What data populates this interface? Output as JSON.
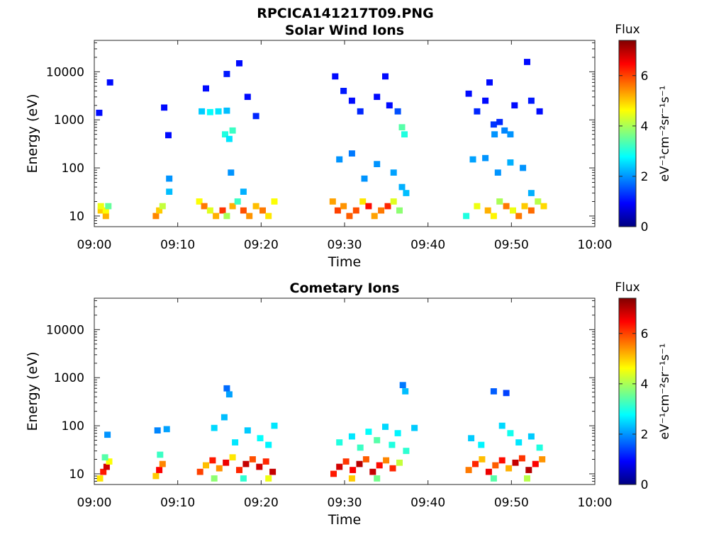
{
  "figure": {
    "title": "RPCICA141217T09.PNG"
  },
  "colormap": "jet",
  "chart_data": [
    {
      "type": "heatmap",
      "title": "Solar Wind Ions",
      "xlabel": "Time",
      "ylabel": "Energy (eV)",
      "x_range": [
        "09:00",
        "10:00"
      ],
      "x_ticks": [
        "09:00",
        "09:10",
        "09:20",
        "09:30",
        "09:40",
        "09:50",
        "10:00"
      ],
      "y_scale": "log",
      "y_range": [
        6,
        45000
      ],
      "y_ticks": [
        "10",
        "100",
        "1000",
        "10000"
      ],
      "colorbar": {
        "title": "Flux",
        "unit": "eV⁻¹cm⁻²sr⁻¹s⁻¹",
        "min": 0,
        "max": 7.4,
        "ticks": [
          "0",
          "2",
          "4",
          "6"
        ]
      },
      "cells": [
        {
          "t": 0.4,
          "e": 13,
          "v": 5.0
        },
        {
          "t": 0.4,
          "e": 16,
          "v": 4.5
        },
        {
          "t": 1.0,
          "e": 10,
          "v": 5.2
        },
        {
          "t": 1.0,
          "e": 13,
          "v": 4.6
        },
        {
          "t": 1.3,
          "e": 16,
          "v": 3.5
        },
        {
          "t": 7.0,
          "e": 10,
          "v": 5.5
        },
        {
          "t": 7.4,
          "e": 13,
          "v": 5.0
        },
        {
          "t": 7.8,
          "e": 16,
          "v": 4.2
        },
        {
          "t": 12.2,
          "e": 20,
          "v": 4.6
        },
        {
          "t": 12.8,
          "e": 16,
          "v": 5.6
        },
        {
          "t": 13.5,
          "e": 13,
          "v": 4.4
        },
        {
          "t": 14.2,
          "e": 10,
          "v": 5.2
        },
        {
          "t": 15.0,
          "e": 13,
          "v": 6.1
        },
        {
          "t": 15.5,
          "e": 10,
          "v": 4.0
        },
        {
          "t": 16.2,
          "e": 16,
          "v": 5.2
        },
        {
          "t": 16.8,
          "e": 20,
          "v": 3.2
        },
        {
          "t": 17.5,
          "e": 13,
          "v": 5.9
        },
        {
          "t": 18.2,
          "e": 10,
          "v": 5.4
        },
        {
          "t": 19.0,
          "e": 16,
          "v": 5.1
        },
        {
          "t": 19.8,
          "e": 13,
          "v": 5.6
        },
        {
          "t": 20.5,
          "e": 10,
          "v": 4.8
        },
        {
          "t": 21.2,
          "e": 20,
          "v": 4.6
        },
        {
          "t": 28.2,
          "e": 20,
          "v": 5.3
        },
        {
          "t": 28.8,
          "e": 13,
          "v": 6.0
        },
        {
          "t": 29.5,
          "e": 16,
          "v": 5.4
        },
        {
          "t": 30.2,
          "e": 10,
          "v": 5.8
        },
        {
          "t": 31.0,
          "e": 13,
          "v": 5.9
        },
        {
          "t": 31.8,
          "e": 20,
          "v": 4.8
        },
        {
          "t": 32.5,
          "e": 16,
          "v": 6.4
        },
        {
          "t": 33.2,
          "e": 10,
          "v": 5.3
        },
        {
          "t": 34.0,
          "e": 13,
          "v": 5.6
        },
        {
          "t": 34.8,
          "e": 16,
          "v": 6.2
        },
        {
          "t": 35.5,
          "e": 20,
          "v": 4.4
        },
        {
          "t": 36.2,
          "e": 13,
          "v": 3.8
        },
        {
          "t": 44.2,
          "e": 10,
          "v": 3.0
        },
        {
          "t": 45.5,
          "e": 16,
          "v": 4.5
        },
        {
          "t": 46.8,
          "e": 13,
          "v": 5.2
        },
        {
          "t": 47.5,
          "e": 10,
          "v": 4.7
        },
        {
          "t": 48.2,
          "e": 20,
          "v": 4.0
        },
        {
          "t": 49.0,
          "e": 16,
          "v": 5.6
        },
        {
          "t": 49.8,
          "e": 13,
          "v": 4.5
        },
        {
          "t": 50.5,
          "e": 10,
          "v": 5.6
        },
        {
          "t": 51.2,
          "e": 16,
          "v": 5.0
        },
        {
          "t": 52.0,
          "e": 13,
          "v": 5.7
        },
        {
          "t": 52.8,
          "e": 20,
          "v": 4.1
        },
        {
          "t": 53.5,
          "e": 16,
          "v": 4.9
        },
        {
          "t": 12.5,
          "e": 1500,
          "v": 2.4
        },
        {
          "t": 13.5,
          "e": 1450,
          "v": 2.8
        },
        {
          "t": 14.5,
          "e": 1500,
          "v": 2.6
        },
        {
          "t": 15.5,
          "e": 1550,
          "v": 2.3
        },
        {
          "t": 15.3,
          "e": 500,
          "v": 3.0
        },
        {
          "t": 15.8,
          "e": 400,
          "v": 2.6
        },
        {
          "t": 16.2,
          "e": 600,
          "v": 3.2
        },
        {
          "t": 13.0,
          "e": 4500,
          "v": 1.0
        },
        {
          "t": 15.5,
          "e": 9000,
          "v": 1.1
        },
        {
          "t": 17.0,
          "e": 15000,
          "v": 1.0
        },
        {
          "t": 18.0,
          "e": 3000,
          "v": 1.0
        },
        {
          "t": 19.0,
          "e": 1200,
          "v": 1.2
        },
        {
          "t": 1.5,
          "e": 6000,
          "v": 1.0
        },
        {
          "t": 0.2,
          "e": 1400,
          "v": 1.0
        },
        {
          "t": 8.0,
          "e": 1800,
          "v": 1.0
        },
        {
          "t": 8.5,
          "e": 480,
          "v": 1.0
        },
        {
          "t": 8.6,
          "e": 60,
          "v": 2.0
        },
        {
          "t": 8.6,
          "e": 32,
          "v": 2.3
        },
        {
          "t": 16.0,
          "e": 80,
          "v": 2.0
        },
        {
          "t": 17.5,
          "e": 32,
          "v": 2.2
        },
        {
          "t": 28.5,
          "e": 8000,
          "v": 1.0
        },
        {
          "t": 29.5,
          "e": 4000,
          "v": 1.1
        },
        {
          "t": 30.5,
          "e": 2500,
          "v": 1.0
        },
        {
          "t": 31.5,
          "e": 1500,
          "v": 1.2
        },
        {
          "t": 33.5,
          "e": 3000,
          "v": 1.0
        },
        {
          "t": 35.0,
          "e": 2000,
          "v": 1.0
        },
        {
          "t": 36.0,
          "e": 1500,
          "v": 1.5
        },
        {
          "t": 36.5,
          "e": 700,
          "v": 3.4
        },
        {
          "t": 36.8,
          "e": 500,
          "v": 3.0
        },
        {
          "t": 34.5,
          "e": 8000,
          "v": 1.0
        },
        {
          "t": 29.0,
          "e": 150,
          "v": 2.0
        },
        {
          "t": 30.5,
          "e": 200,
          "v": 1.8
        },
        {
          "t": 32.0,
          "e": 60,
          "v": 2.0
        },
        {
          "t": 33.5,
          "e": 120,
          "v": 2.0
        },
        {
          "t": 35.5,
          "e": 80,
          "v": 2.1
        },
        {
          "t": 36.5,
          "e": 40,
          "v": 2.2
        },
        {
          "t": 37.0,
          "e": 30,
          "v": 2.3
        },
        {
          "t": 44.5,
          "e": 3500,
          "v": 1.0
        },
        {
          "t": 45.5,
          "e": 1500,
          "v": 1.2
        },
        {
          "t": 46.5,
          "e": 2500,
          "v": 1.0
        },
        {
          "t": 47.5,
          "e": 800,
          "v": 1.3
        },
        {
          "t": 47.6,
          "e": 500,
          "v": 2.0
        },
        {
          "t": 48.2,
          "e": 900,
          "v": 1.2
        },
        {
          "t": 48.8,
          "e": 600,
          "v": 1.9
        },
        {
          "t": 49.5,
          "e": 500,
          "v": 2.0
        },
        {
          "t": 50.0,
          "e": 2000,
          "v": 1.0
        },
        {
          "t": 51.5,
          "e": 16000,
          "v": 1.0
        },
        {
          "t": 52.0,
          "e": 2500,
          "v": 1.1
        },
        {
          "t": 53.0,
          "e": 1500,
          "v": 1.0
        },
        {
          "t": 47.0,
          "e": 6000,
          "v": 1.0
        },
        {
          "t": 48.0,
          "e": 80,
          "v": 2.0
        },
        {
          "t": 49.5,
          "e": 130,
          "v": 2.2
        },
        {
          "t": 51.0,
          "e": 100,
          "v": 2.0
        },
        {
          "t": 52.0,
          "e": 30,
          "v": 2.2
        },
        {
          "t": 45.0,
          "e": 150,
          "v": 2.1
        },
        {
          "t": 46.5,
          "e": 160,
          "v": 2.0
        }
      ]
    },
    {
      "type": "heatmap",
      "title": "Cometary Ions",
      "xlabel": "Time",
      "ylabel": "Energy (eV)",
      "x_range": [
        "09:00",
        "10:00"
      ],
      "x_ticks": [
        "09:00",
        "09:10",
        "09:20",
        "09:30",
        "09:40",
        "09:50",
        "10:00"
      ],
      "y_scale": "log",
      "y_range": [
        6,
        45000
      ],
      "y_ticks": [
        "10",
        "100",
        "1000",
        "10000"
      ],
      "colorbar": {
        "title": "Flux",
        "unit": "eV⁻¹cm⁻²sr⁻¹s⁻¹",
        "min": 0,
        "max": 7.4,
        "ticks": [
          "0",
          "2",
          "4",
          "6"
        ]
      },
      "cells": [
        {
          "t": 0.3,
          "e": 8,
          "v": 4.8
        },
        {
          "t": 0.7,
          "e": 11,
          "v": 6.3
        },
        {
          "t": 1.1,
          "e": 14,
          "v": 6.8
        },
        {
          "t": 1.4,
          "e": 18,
          "v": 4.6
        },
        {
          "t": 0.9,
          "e": 22,
          "v": 3.4
        },
        {
          "t": 1.2,
          "e": 65,
          "v": 2.0
        },
        {
          "t": 7.0,
          "e": 9,
          "v": 5.0
        },
        {
          "t": 7.4,
          "e": 12,
          "v": 6.5
        },
        {
          "t": 7.8,
          "e": 16,
          "v": 5.5
        },
        {
          "t": 7.5,
          "e": 25,
          "v": 3.2
        },
        {
          "t": 7.2,
          "e": 80,
          "v": 1.9
        },
        {
          "t": 8.3,
          "e": 85,
          "v": 2.1
        },
        {
          "t": 12.3,
          "e": 11,
          "v": 6.0
        },
        {
          "t": 13.0,
          "e": 15,
          "v": 5.1
        },
        {
          "t": 13.8,
          "e": 19,
          "v": 6.3
        },
        {
          "t": 14.6,
          "e": 13,
          "v": 5.4
        },
        {
          "t": 15.4,
          "e": 17,
          "v": 6.6
        },
        {
          "t": 16.2,
          "e": 22,
          "v": 4.8
        },
        {
          "t": 17.0,
          "e": 12,
          "v": 6.2
        },
        {
          "t": 17.8,
          "e": 16,
          "v": 6.9
        },
        {
          "t": 18.6,
          "e": 20,
          "v": 5.9
        },
        {
          "t": 19.4,
          "e": 14,
          "v": 6.8
        },
        {
          "t": 20.2,
          "e": 18,
          "v": 6.2
        },
        {
          "t": 21.0,
          "e": 11,
          "v": 6.9
        },
        {
          "t": 14.0,
          "e": 8,
          "v": 3.8
        },
        {
          "t": 17.5,
          "e": 8,
          "v": 3.1
        },
        {
          "t": 20.5,
          "e": 8,
          "v": 4.5
        },
        {
          "t": 15.5,
          "e": 600,
          "v": 1.7
        },
        {
          "t": 15.8,
          "e": 450,
          "v": 2.1
        },
        {
          "t": 15.2,
          "e": 150,
          "v": 2.3
        },
        {
          "t": 14.0,
          "e": 90,
          "v": 2.5
        },
        {
          "t": 16.5,
          "e": 45,
          "v": 2.6
        },
        {
          "t": 18.0,
          "e": 80,
          "v": 2.4
        },
        {
          "t": 19.5,
          "e": 55,
          "v": 2.8
        },
        {
          "t": 20.5,
          "e": 40,
          "v": 2.7
        },
        {
          "t": 21.2,
          "e": 100,
          "v": 2.6
        },
        {
          "t": 28.3,
          "e": 10,
          "v": 6.3
        },
        {
          "t": 29.0,
          "e": 14,
          "v": 6.8
        },
        {
          "t": 29.8,
          "e": 18,
          "v": 6.1
        },
        {
          "t": 30.6,
          "e": 12,
          "v": 6.5
        },
        {
          "t": 31.4,
          "e": 16,
          "v": 7.0
        },
        {
          "t": 32.2,
          "e": 20,
          "v": 5.8
        },
        {
          "t": 33.0,
          "e": 11,
          "v": 6.9
        },
        {
          "t": 33.8,
          "e": 15,
          "v": 6.4
        },
        {
          "t": 34.6,
          "e": 19,
          "v": 5.5
        },
        {
          "t": 35.4,
          "e": 13,
          "v": 6.2
        },
        {
          "t": 36.2,
          "e": 17,
          "v": 4.2
        },
        {
          "t": 30.5,
          "e": 8,
          "v": 5.0
        },
        {
          "t": 33.5,
          "e": 8,
          "v": 3.6
        },
        {
          "t": 29.0,
          "e": 45,
          "v": 3.0
        },
        {
          "t": 30.5,
          "e": 60,
          "v": 2.6
        },
        {
          "t": 31.5,
          "e": 35,
          "v": 3.2
        },
        {
          "t": 32.5,
          "e": 75,
          "v": 2.8
        },
        {
          "t": 33.5,
          "e": 50,
          "v": 3.4
        },
        {
          "t": 34.5,
          "e": 95,
          "v": 2.5
        },
        {
          "t": 35.3,
          "e": 40,
          "v": 3.0
        },
        {
          "t": 36.0,
          "e": 70,
          "v": 2.7
        },
        {
          "t": 37.0,
          "e": 30,
          "v": 3.1
        },
        {
          "t": 38.0,
          "e": 90,
          "v": 2.4
        },
        {
          "t": 36.6,
          "e": 700,
          "v": 1.8
        },
        {
          "t": 36.9,
          "e": 520,
          "v": 2.3
        },
        {
          "t": 44.5,
          "e": 12,
          "v": 5.6
        },
        {
          "t": 45.3,
          "e": 16,
          "v": 6.2
        },
        {
          "t": 46.1,
          "e": 20,
          "v": 5.1
        },
        {
          "t": 46.9,
          "e": 11,
          "v": 6.6
        },
        {
          "t": 47.7,
          "e": 15,
          "v": 5.8
        },
        {
          "t": 48.5,
          "e": 19,
          "v": 6.4
        },
        {
          "t": 49.3,
          "e": 13,
          "v": 5.2
        },
        {
          "t": 50.1,
          "e": 17,
          "v": 6.9
        },
        {
          "t": 50.9,
          "e": 21,
          "v": 6.1
        },
        {
          "t": 51.7,
          "e": 12,
          "v": 7.0
        },
        {
          "t": 52.5,
          "e": 16,
          "v": 6.5
        },
        {
          "t": 53.3,
          "e": 20,
          "v": 5.4
        },
        {
          "t": 47.5,
          "e": 8,
          "v": 3.4
        },
        {
          "t": 51.5,
          "e": 8,
          "v": 4.1
        },
        {
          "t": 44.8,
          "e": 55,
          "v": 2.4
        },
        {
          "t": 46.0,
          "e": 40,
          "v": 2.7
        },
        {
          "t": 47.5,
          "e": 520,
          "v": 1.6
        },
        {
          "t": 49.0,
          "e": 480,
          "v": 1.4
        },
        {
          "t": 48.5,
          "e": 100,
          "v": 2.5
        },
        {
          "t": 49.5,
          "e": 70,
          "v": 2.9
        },
        {
          "t": 50.5,
          "e": 45,
          "v": 2.6
        },
        {
          "t": 52.0,
          "e": 60,
          "v": 2.4
        },
        {
          "t": 53.0,
          "e": 35,
          "v": 3.0
        }
      ]
    }
  ]
}
